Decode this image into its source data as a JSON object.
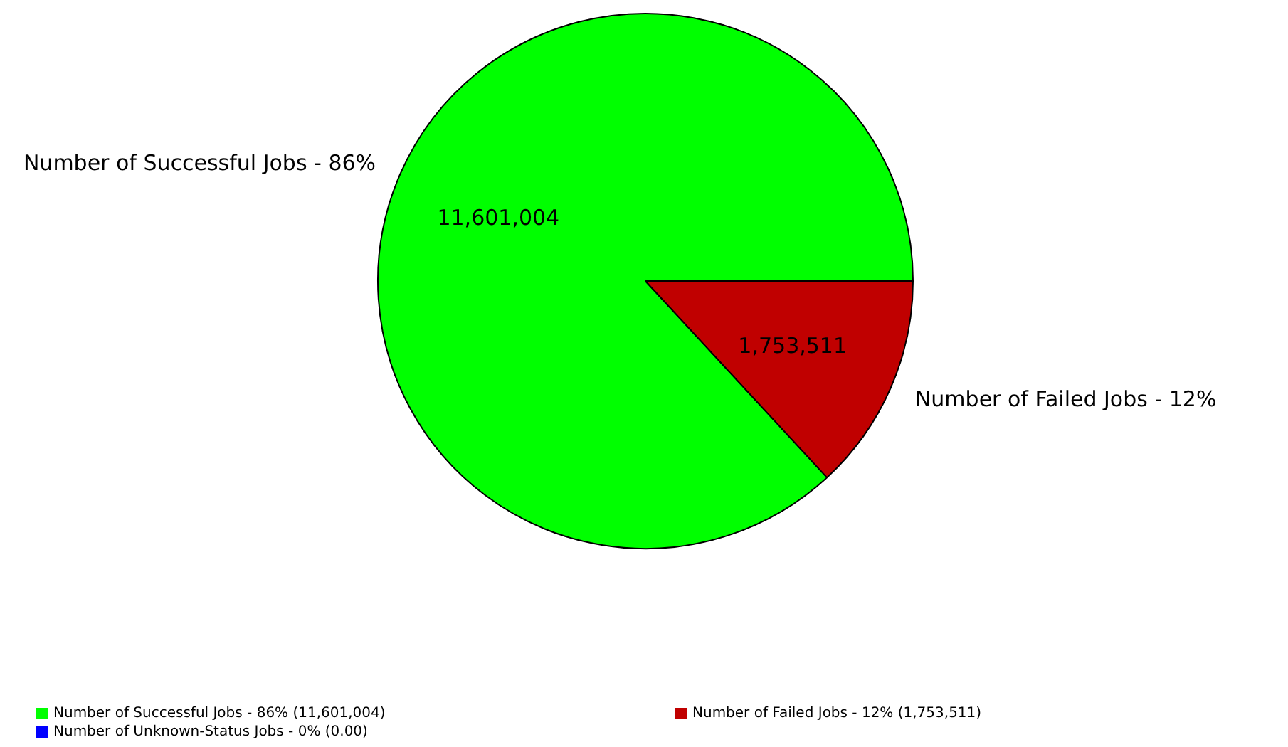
{
  "chart_data": {
    "type": "pie",
    "categories": [
      "Number of Successful Jobs - 86% (11,601,004)",
      "Number of Failed Jobs - 12% (1,753,511)",
      "Number of Unknown-Status Jobs - 0% (0.00)"
    ],
    "values": [
      11601004,
      1753511,
      0
    ],
    "colors": [
      "#00ff00",
      "#c00000",
      "#0000ff"
    ],
    "value_labels": [
      "11,601,004",
      "1,753,511",
      null
    ],
    "annotations": [
      "Number of Successful Jobs - 86%",
      "Number of Failed Jobs - 12%"
    ],
    "legend": "bottom"
  }
}
